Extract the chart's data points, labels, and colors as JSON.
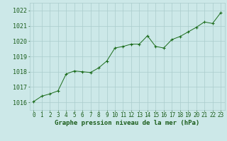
{
  "x": [
    0,
    1,
    2,
    3,
    4,
    5,
    6,
    7,
    8,
    9,
    10,
    11,
    12,
    13,
    14,
    15,
    16,
    17,
    18,
    19,
    20,
    21,
    22,
    23
  ],
  "y": [
    1016.05,
    1016.4,
    1016.55,
    1016.75,
    1017.85,
    1018.05,
    1018.0,
    1017.95,
    1018.25,
    1018.7,
    1019.55,
    1019.65,
    1019.8,
    1019.8,
    1020.35,
    1019.65,
    1019.55,
    1020.1,
    1020.3,
    1020.6,
    1020.9,
    1021.25,
    1021.15,
    1021.85
  ],
  "line_color": "#1a6b1a",
  "marker": "+",
  "marker_size": 3,
  "marker_color": "#1a6b1a",
  "bg_color": "#cce8e8",
  "grid_color": "#aacccc",
  "xlabel": "Graphe pression niveau de la mer (hPa)",
  "xlabel_color": "#1a5c1a",
  "xlabel_fontsize": 6.5,
  "ylabel_fontsize": 6.0,
  "tick_color": "#1a5c1a",
  "tick_fontsize": 5.5,
  "ylim": [
    1015.5,
    1022.5
  ],
  "yticks": [
    1016,
    1017,
    1018,
    1019,
    1020,
    1021,
    1022
  ],
  "xlim": [
    -0.5,
    23.5
  ],
  "xticks": [
    0,
    1,
    2,
    3,
    4,
    5,
    6,
    7,
    8,
    9,
    10,
    11,
    12,
    13,
    14,
    15,
    16,
    17,
    18,
    19,
    20,
    21,
    22,
    23
  ]
}
